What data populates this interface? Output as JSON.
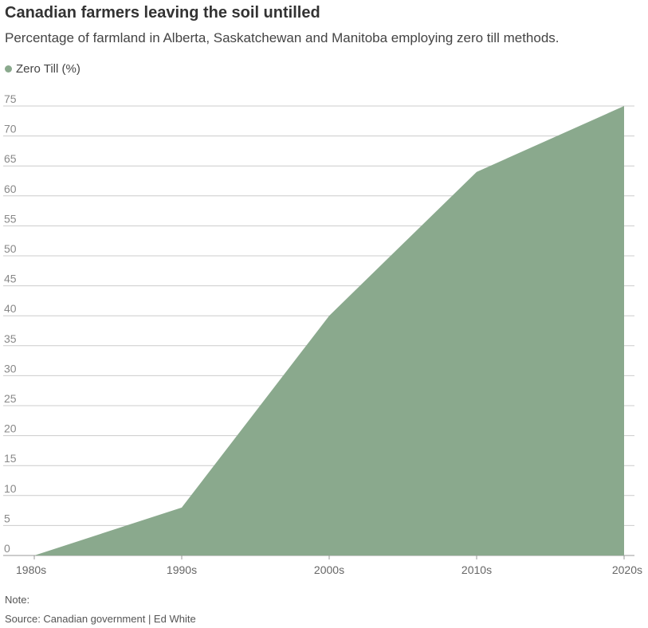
{
  "header": {
    "title": "Canadian farmers leaving the soil untilled",
    "subtitle": "Percentage of farmland in Alberta, Saskatchewan and Manitoba employing zero till methods."
  },
  "footer": {
    "note": "Note:",
    "source": "Source: Canadian government | Ed White"
  },
  "chart_data": {
    "type": "area",
    "title": "Canadian farmers leaving the soil untilled",
    "subtitle": "Percentage of farmland in Alberta, Saskatchewan and Manitoba employing zero till methods.",
    "x": [
      "1980s",
      "1990s",
      "2000s",
      "2010s",
      "2020s"
    ],
    "series": [
      {
        "name": "Zero Till (%)",
        "values": [
          0,
          8,
          40,
          64,
          75
        ],
        "color": "#8aa98d"
      }
    ],
    "yticks": [
      0,
      5,
      10,
      15,
      20,
      25,
      30,
      35,
      40,
      45,
      50,
      55,
      60,
      65,
      70,
      75
    ],
    "ylim": [
      0,
      75
    ],
    "grid": true,
    "legend": "top-left",
    "xlabel": "",
    "ylabel": ""
  }
}
